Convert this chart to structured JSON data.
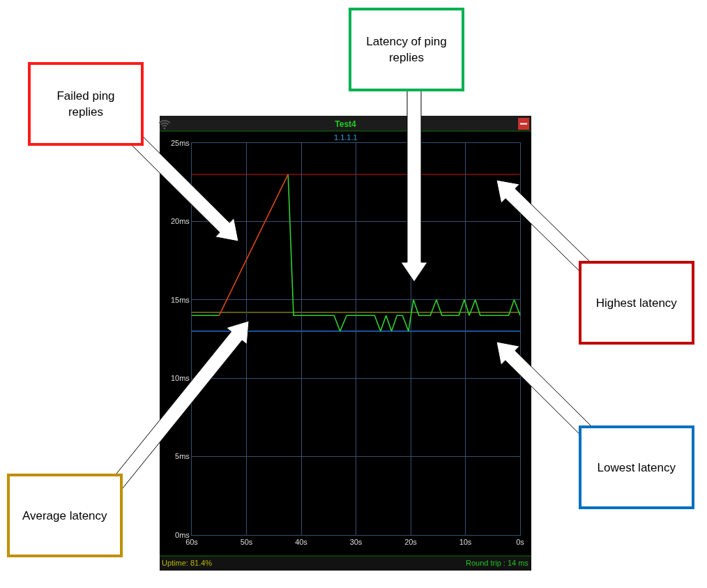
{
  "chart_data": {
    "type": "line",
    "title": "Test4",
    "subtitle": "1.1.1.1",
    "xlim": [
      60,
      0
    ],
    "xticks": [
      {
        "value": 60,
        "label": "60s"
      },
      {
        "value": 50,
        "label": "50s"
      },
      {
        "value": 40,
        "label": "40s"
      },
      {
        "value": 30,
        "label": "30s"
      },
      {
        "value": 20,
        "label": "20s"
      },
      {
        "value": 10,
        "label": "10s"
      },
      {
        "value": 0,
        "label": "0s"
      }
    ],
    "ylim": [
      0,
      25
    ],
    "yticks": [
      {
        "value": 0,
        "label": "0ms"
      },
      {
        "value": 5,
        "label": "5ms"
      },
      {
        "value": 10,
        "label": "10ms"
      },
      {
        "value": 15,
        "label": "15ms"
      },
      {
        "value": 20,
        "label": "20ms"
      },
      {
        "value": 25,
        "label": "25ms"
      }
    ],
    "grid": true,
    "series": [
      {
        "color": "#2fd02f",
        "x": [
          60,
          55,
          48.7,
          42.4,
          41.4,
          34.0,
          32.9,
          31.7,
          26.6,
          25.5,
          24.5,
          23.5,
          22.5,
          21.5,
          20.4,
          19.5,
          18.5,
          16.4,
          15.3,
          14.3,
          11.2,
          10.2,
          9.3,
          8.2,
          7.3,
          2.1,
          1.1,
          0
        ],
        "values": [
          14,
          14,
          null,
          23,
          14,
          14,
          13,
          14,
          14,
          13,
          14,
          13,
          14,
          14,
          13,
          15,
          14,
          14,
          15,
          14,
          14,
          15,
          14,
          15,
          14,
          14,
          15,
          14
        ]
      },
      {
        "color": "#d9441a",
        "x": [
          55,
          42.4
        ],
        "values": [
          14,
          23
        ]
      }
    ],
    "ref_lines": [
      {
        "axis": "y",
        "value": 23,
        "color": "#8e0a0a"
      },
      {
        "axis": "y",
        "value": 14.2,
        "color": "#7d7a06"
      },
      {
        "axis": "y",
        "value": 13,
        "color": "#1f6fd6"
      }
    ],
    "annotations": [
      "Failed ping replies",
      "Latency of ping replies",
      "Highest latency",
      "Lowest latency",
      "Average latency",
      "Uptime: 81.4%",
      "Round trip : 14 ms"
    ]
  }
}
